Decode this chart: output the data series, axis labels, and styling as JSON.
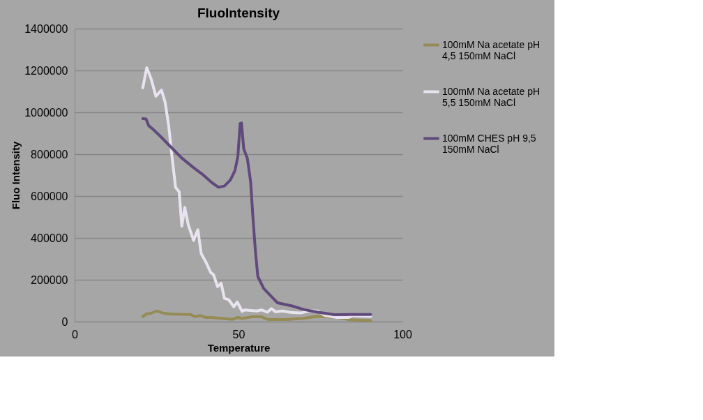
{
  "chart_data": {
    "type": "line",
    "title": "FluoIntensity",
    "xlabel": "Temperature",
    "ylabel": "Fluo Intensity",
    "xlim": [
      0,
      100
    ],
    "xticks": [
      0,
      50,
      100
    ],
    "ylim": [
      0,
      1400000
    ],
    "yticks": [
      0,
      200000,
      400000,
      600000,
      800000,
      1000000,
      1200000,
      1400000
    ],
    "grid": "y",
    "legend": "right",
    "marker": "none",
    "line_style": "solid",
    "series": [
      {
        "name": "100mM Na acetate pH 4,5 150mM NaCl",
        "color": "#958b54",
        "x": [
          20.8,
          21.9,
          23.3,
          25.1,
          26.9,
          29,
          31.9,
          35.4,
          36.8,
          38.3,
          40,
          41.8,
          44.7,
          48.2,
          49.8,
          51.1,
          54.1,
          57,
          59.1,
          64.8,
          69.9,
          74.2,
          79.9,
          84.2,
          90.3
        ],
        "values": [
          24000,
          37000,
          40000,
          51000,
          41000,
          37000,
          35000,
          34000,
          23000,
          29000,
          20000,
          20000,
          16000,
          11000,
          20000,
          15000,
          23000,
          23000,
          10000,
          10000,
          16000,
          26000,
          21000,
          8000,
          5000
        ]
      },
      {
        "name": "100mM Na acetate pH 5,5 150mM NaCl",
        "color": "#e8e4ef",
        "x": [
          20.8,
          22,
          23.3,
          24.8,
          26.5,
          27.6,
          28.7,
          29.7,
          30.8,
          31.9,
          32.7,
          33.6,
          34.7,
          36.3,
          37.6,
          38.6,
          40,
          41.5,
          42.4,
          43.6,
          44.7,
          45.7,
          47,
          48.6,
          49.6,
          51.1,
          51.9,
          55.5,
          57,
          58.8,
          60,
          61.3,
          63.4,
          66.3,
          69.2,
          72,
          74.2,
          76.3,
          79.9,
          83.5,
          84.9,
          90.3
        ],
        "values": [
          1117000,
          1213000,
          1162000,
          1077000,
          1106000,
          1049000,
          936000,
          789000,
          642000,
          620000,
          456000,
          546000,
          461000,
          388000,
          439000,
          326000,
          286000,
          235000,
          224000,
          167000,
          184000,
          111000,
          105000,
          71000,
          94000,
          49000,
          56000,
          51000,
          56000,
          45000,
          62000,
          47000,
          51000,
          43000,
          42000,
          52000,
          51000,
          30000,
          20000,
          20000,
          28000,
          25000
        ]
      },
      {
        "name": "100mM CHES pH 9,5 150mM NaCl",
        "color": "#604a7b",
        "x": [
          20.8,
          21.8,
          22.6,
          23.7,
          25.8,
          29,
          32.6,
          36.1,
          39,
          41.8,
          43.9,
          45.7,
          47.5,
          48.9,
          49.8,
          50.5,
          50.9,
          51.6,
          52.7,
          53.7,
          54.4,
          55.2,
          55.9,
          57.7,
          59.8,
          61.9,
          66.3,
          69.9,
          74.2,
          79.2,
          84.2,
          90.3
        ],
        "values": [
          970000,
          968000,
          936000,
          922000,
          891000,
          840000,
          783000,
          738000,
          704000,
          665000,
          642000,
          648000,
          676000,
          721000,
          789000,
          947000,
          949000,
          825000,
          780000,
          667000,
          497000,
          328000,
          215000,
          158000,
          124000,
          90000,
          75000,
          58000,
          45000,
          33000,
          34000,
          34000
        ]
      }
    ]
  }
}
